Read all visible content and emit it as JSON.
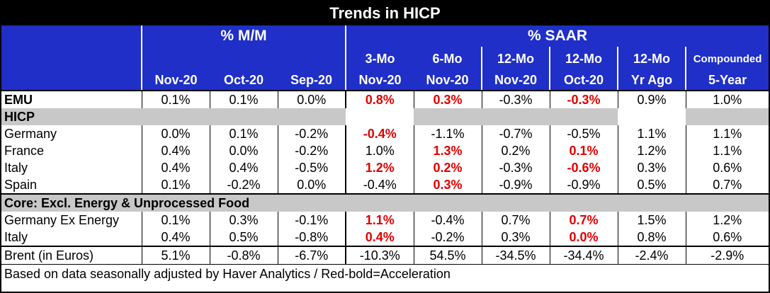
{
  "title": "Trends in HICP",
  "headers": {
    "mm_group": "% M/M",
    "saar_group": "% SAAR",
    "row2": [
      "",
      "",
      "",
      "3-Mo",
      "6-Mo",
      "12-Mo",
      "12-Mo",
      "12-Mo",
      "Compounded"
    ],
    "row3": [
      "Nov-20",
      "Oct-20",
      "Sep-20",
      "Nov-20",
      "Nov-20",
      "Nov-20",
      "Oct-20",
      "Yr Ago",
      "5-Year"
    ]
  },
  "rows": {
    "emu": {
      "label": "EMU",
      "values": [
        "0.1%",
        "0.1%",
        "0.0%",
        "0.8%",
        "0.3%",
        "-0.3%",
        "-0.3%",
        "0.9%",
        "1.0%"
      ]
    },
    "hicp_band": {
      "label": "HICP"
    },
    "germany": {
      "label": "Germany",
      "values": [
        "0.0%",
        "0.1%",
        "-0.2%",
        "-0.4%",
        "-1.1%",
        "-0.7%",
        "-0.5%",
        "1.1%",
        "1.1%"
      ]
    },
    "france": {
      "label": "France",
      "values": [
        "0.4%",
        "0.0%",
        "-0.2%",
        "1.0%",
        "1.3%",
        "0.2%",
        "0.1%",
        "1.2%",
        "1.1%"
      ]
    },
    "italy": {
      "label": "Italy",
      "values": [
        "0.4%",
        "0.4%",
        "-0.5%",
        "1.2%",
        "0.2%",
        "-0.3%",
        "-0.6%",
        "0.3%",
        "0.6%"
      ]
    },
    "spain": {
      "label": "Spain",
      "values": [
        "0.1%",
        "-0.2%",
        "0.0%",
        "-0.4%",
        "0.3%",
        "-0.9%",
        "-0.9%",
        "0.5%",
        "0.7%"
      ]
    },
    "core_band": {
      "label": "Core: Excl. Energy & Unprocessed Food"
    },
    "germany_ex": {
      "label": "Germany Ex Energy",
      "values": [
        "0.1%",
        "0.3%",
        "-0.1%",
        "1.1%",
        "-0.4%",
        "0.7%",
        "0.7%",
        "1.5%",
        "1.2%"
      ]
    },
    "italy_core": {
      "label": "Italy",
      "values": [
        "0.4%",
        "0.5%",
        "-0.8%",
        "0.4%",
        "-0.2%",
        "0.3%",
        "0.0%",
        "0.8%",
        "0.6%"
      ]
    },
    "brent": {
      "label": "Brent (in Euros)",
      "values": [
        "5.1%",
        "-0.8%",
        "-6.7%",
        "-10.3%",
        "54.5%",
        "-34.5%",
        "-34.4%",
        "-2.4%",
        "-2.9%"
      ]
    }
  },
  "footer": "Based on data seasonally adjusted by Haver Analytics / Red-bold=Acceleration",
  "colors": {
    "header_bg": "#1f2fc7",
    "band_bg": "#c8c8c8",
    "accel": "#e00000"
  }
}
